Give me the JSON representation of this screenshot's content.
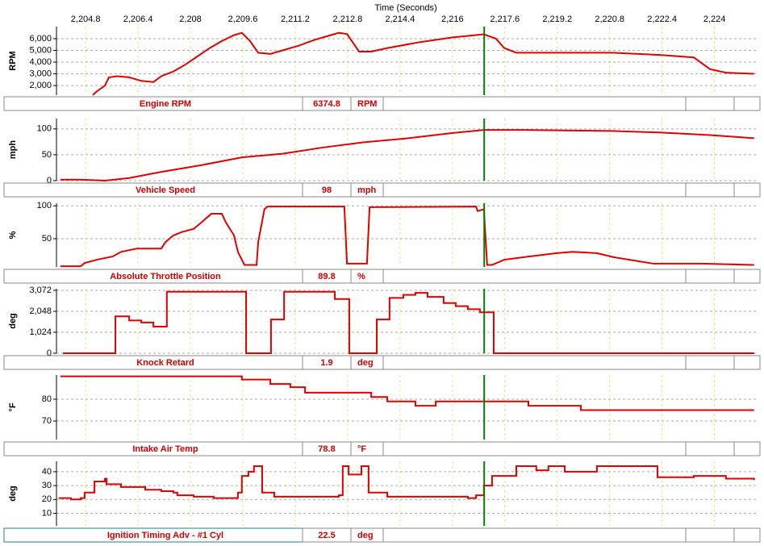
{
  "chart_data": {
    "type": "multi-panel",
    "x_title": "Time (Seconds)",
    "xlim": [
      2203.91,
      2225.34
    ],
    "xticks": [
      {
        "value": 2204.8,
        "label": "2,204.8"
      },
      {
        "value": 2206.4,
        "label": "2,206.4"
      },
      {
        "value": 2208,
        "label": "2,208"
      },
      {
        "value": 2209.6,
        "label": "2,209.6"
      },
      {
        "value": 2211.2,
        "label": "2,211.2"
      },
      {
        "value": 2212.8,
        "label": "2,212.8"
      },
      {
        "value": 2214.4,
        "label": "2,214.4"
      },
      {
        "value": 2216,
        "label": "2,216"
      },
      {
        "value": 2217.6,
        "label": "2,217.6"
      },
      {
        "value": 2219.2,
        "label": "2,219.2"
      },
      {
        "value": 2220.8,
        "label": "2,220.8"
      },
      {
        "value": 2222.4,
        "label": "2,222.4"
      },
      {
        "value": 2224,
        "label": "2,224"
      }
    ],
    "cursor": 2216.97,
    "panels": [
      {
        "type": "line",
        "ylabel": "RPM",
        "name": "Engine RPM",
        "readout": 6374.8,
        "unit": "RPM",
        "color": "#e00000",
        "step": false,
        "ylim": [
          1180,
          7030
        ],
        "yticks": [
          {
            "value": 2000,
            "label": "2,000"
          },
          {
            "value": 3000,
            "label": "3,000"
          },
          {
            "value": 4000,
            "label": "4,000"
          },
          {
            "value": 5000,
            "label": "5,000"
          },
          {
            "value": 6000,
            "label": "6,000"
          }
        ],
        "x": [
          2205.02,
          2205.14,
          2205.39,
          2205.51,
          2205.76,
          2206.13,
          2206.5,
          2206.87,
          2207.11,
          2207.48,
          2207.85,
          2208.22,
          2208.59,
          2208.96,
          2209.33,
          2209.57,
          2209.82,
          2210.07,
          2210.44,
          2210.81,
          2211.3,
          2211.79,
          2212.28,
          2212.53,
          2212.78,
          2213.15,
          2213.52,
          2214.01,
          2214.99,
          2215.98,
          2216.96,
          2217.33,
          2217.58,
          2217.95,
          2219.43,
          2220.91,
          2222.38,
          2223.37,
          2223.86,
          2224.35,
          2225.21
        ],
        "values": [
          1200,
          1500,
          2000,
          2700,
          2800,
          2700,
          2400,
          2300,
          2800,
          3200,
          3800,
          4500,
          5200,
          5800,
          6300,
          6500,
          5800,
          4800,
          4700,
          5000,
          5400,
          5900,
          6300,
          6500,
          6400,
          4900,
          4900,
          5200,
          5700,
          6100,
          6375,
          6000,
          5200,
          4800,
          4800,
          4800,
          4600,
          4400,
          3400,
          3100,
          3000
        ]
      },
      {
        "type": "line",
        "ylabel": "mph",
        "name": "Vehicle Speed",
        "readout": 98,
        "unit": "mph",
        "color": "#e00000",
        "step": false,
        "ylim": [
          0,
          120
        ],
        "yticks": [
          0,
          50,
          100
        ],
        "x": [
          2204.03,
          2204.65,
          2205.39,
          2206.13,
          2207.11,
          2208.34,
          2209.57,
          2210.81,
          2212.04,
          2213.27,
          2214.5,
          2215.98,
          2216.96,
          2218.2,
          2219.43,
          2220.91,
          2222.38,
          2223.86,
          2225.21
        ],
        "values": [
          2,
          2,
          0,
          5,
          17,
          30,
          45,
          52,
          64,
          74,
          81,
          92,
          98,
          98,
          97,
          96,
          93,
          88,
          82
        ]
      },
      {
        "type": "line",
        "ylabel": "%",
        "name": "Absolute Throttle Position",
        "readout": 89.8,
        "unit": "%",
        "color": "#e00000",
        "step": false,
        "ylim": [
          7,
          104
        ],
        "yticks": [
          50,
          100
        ],
        "x": [
          2204.03,
          2204.65,
          2204.77,
          2205.14,
          2205.63,
          2205.88,
          2206.37,
          2207.11,
          2207.24,
          2207.48,
          2207.73,
          2208.1,
          2208.34,
          2208.64,
          2208.96,
          2209.08,
          2209.33,
          2209.45,
          2209.65,
          2210.02,
          2210.07,
          2210.26,
          2210.36,
          2212.7,
          2212.78,
          2213.39,
          2213.47,
          2216.72,
          2216.77,
          2216.96,
          2217.06,
          2217.21,
          2217.58,
          2218.2,
          2219.18,
          2219.67,
          2220.41,
          2220.91,
          2221.64,
          2222.14,
          2223.61,
          2225.21
        ],
        "values": [
          8,
          8,
          13,
          18,
          23,
          30,
          35,
          35,
          45,
          55,
          60,
          65,
          75,
          88,
          88,
          75,
          55,
          30,
          10,
          10,
          45,
          95,
          99,
          99,
          12,
          12,
          98,
          99,
          92,
          95,
          10,
          10,
          18,
          22,
          28,
          30,
          28,
          22,
          16,
          12,
          12,
          10
        ]
      },
      {
        "type": "line",
        "ylabel": "deg",
        "name": "Knock Retard",
        "readout": 1.9,
        "unit": "deg",
        "color": "#e00000",
        "step": true,
        "ylim": [
          0,
          3150
        ],
        "yticks": [
          0,
          {
            "value": 1024,
            "label": "1,024"
          },
          {
            "value": 2048,
            "label": "2,048"
          },
          {
            "value": 3072,
            "label": "3,072"
          }
        ],
        "x": [
          2204.11,
          2205.71,
          2206.13,
          2206.5,
          2206.87,
          2207.28,
          2209.7,
          2210.46,
          2210.86,
          2212.41,
          2212.85,
          2213.69,
          2214.08,
          2214.5,
          2214.87,
          2215.24,
          2215.73,
          2216.1,
          2216.47,
          2216.84,
          2217.26,
          2225.21
        ],
        "values": [
          0,
          1800,
          1600,
          1500,
          1300,
          3000,
          0,
          1650,
          3000,
          2650,
          0,
          1650,
          2700,
          2850,
          2950,
          2750,
          2450,
          2300,
          2150,
          2000,
          0,
          0
        ]
      },
      {
        "type": "line",
        "ylabel": "°F",
        "name": "Intake Air Temp",
        "readout": 78.8,
        "unit": "°F",
        "color": "#e00000",
        "step": true,
        "ylim": [
          61.5,
          91.1
        ],
        "yticks": [
          70,
          80
        ],
        "x": [
          2204.03,
          2208.71,
          2209.57,
          2210.44,
          2211.05,
          2211.5,
          2213.52,
          2214.01,
          2214.87,
          2215.49,
          2218.32,
          2219.92,
          2225.21
        ],
        "values": [
          90.5,
          90.5,
          89,
          87,
          85.5,
          83,
          81,
          79,
          77,
          79,
          77,
          75,
          75
        ]
      },
      {
        "type": "line",
        "ylabel": "deg",
        "name": "Ignition Timing Adv - #1 Cyl",
        "readout": 22.5,
        "unit": "deg",
        "color": "#e00000",
        "step": true,
        "ylim": [
          1,
          47.5
        ],
        "yticks": [
          10,
          20,
          30,
          40
        ],
        "x": [
          2203.98,
          2204.35,
          2204.65,
          2204.77,
          2205.07,
          2205.39,
          2205.44,
          2205.88,
          2206.62,
          2207.11,
          2207.48,
          2207.6,
          2208.1,
          2208.71,
          2209.45,
          2209.57,
          2209.77,
          2209.94,
          2210.19,
          2210.56,
          2212.53,
          2212.65,
          2212.83,
          2213.22,
          2213.44,
          2214.01,
          2216.47,
          2216.72,
          2216.96,
          2217.21,
          2217.95,
          2218.56,
          2218.93,
          2219.43,
          2220.41,
          2222.26,
          2223.37,
          2224.35,
          2225.21
        ],
        "values": [
          21,
          20,
          21,
          25,
          33,
          35,
          31,
          29,
          27,
          26,
          25,
          23,
          22,
          21,
          25,
          37,
          40,
          44,
          25,
          22,
          23,
          44,
          38,
          44,
          25,
          22,
          21,
          23,
          30,
          37,
          44,
          41,
          44,
          40,
          44,
          36,
          37,
          35,
          34
        ]
      }
    ]
  }
}
